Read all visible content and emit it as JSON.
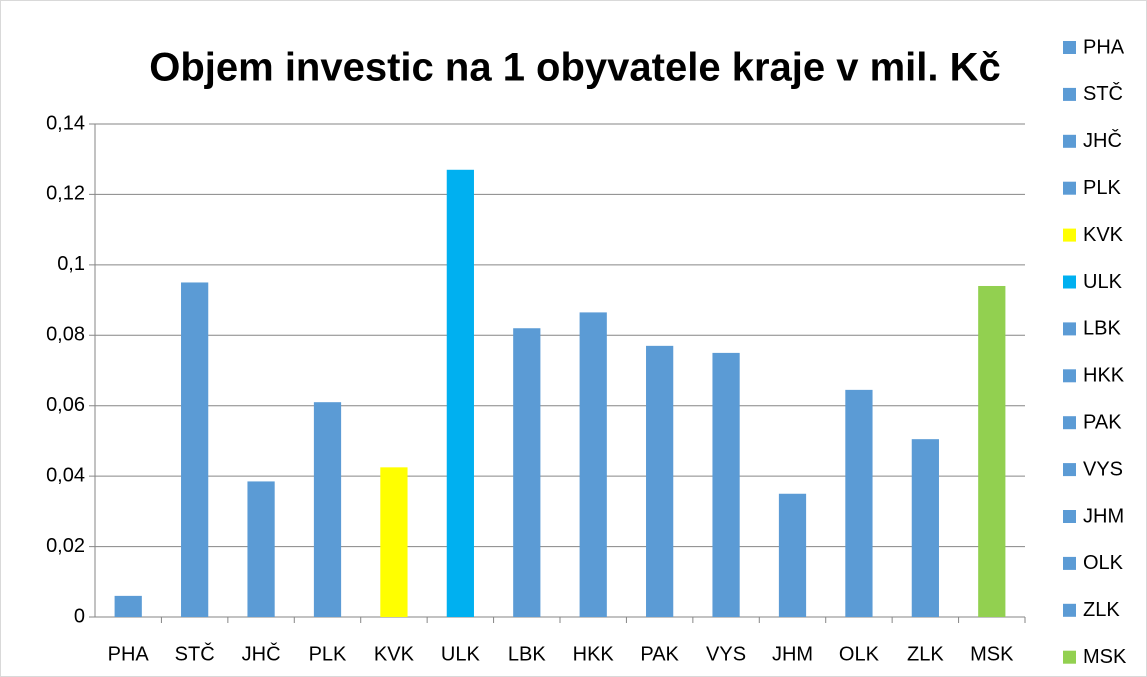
{
  "chart_data": {
    "type": "bar",
    "title": "Objem investic na 1 obyvatele kraje v mil. Kč",
    "categories": [
      "PHA",
      "STČ",
      "JHČ",
      "PLK",
      "KVK",
      "ULK",
      "LBK",
      "HKK",
      "PAK",
      "VYS",
      "JHM",
      "OLK",
      "ZLK",
      "MSK"
    ],
    "values": [
      0.006,
      0.095,
      0.0385,
      0.061,
      0.0425,
      0.127,
      0.082,
      0.0865,
      0.077,
      0.075,
      0.035,
      0.0645,
      0.0505,
      0.094
    ],
    "colors": [
      "#5b9bd5",
      "#5b9bd5",
      "#5b9bd5",
      "#5b9bd5",
      "#ffff00",
      "#00b0f0",
      "#5b9bd5",
      "#5b9bd5",
      "#5b9bd5",
      "#5b9bd5",
      "#5b9bd5",
      "#5b9bd5",
      "#5b9bd5",
      "#92d050"
    ],
    "ylim": [
      0,
      0.14
    ],
    "yticks": [
      0,
      {
        "value": 0.02,
        "label": "0,02"
      },
      {
        "value": 0.04,
        "label": "0,04"
      },
      {
        "value": 0.06,
        "label": "0,06"
      },
      {
        "value": 0.08,
        "label": "0,08"
      },
      {
        "value": 0.1,
        "label": "0,1"
      },
      {
        "value": 0.12,
        "label": "0,12"
      },
      {
        "value": 0.14,
        "label": "0,14"
      }
    ],
    "grid": true,
    "legend": "right"
  }
}
